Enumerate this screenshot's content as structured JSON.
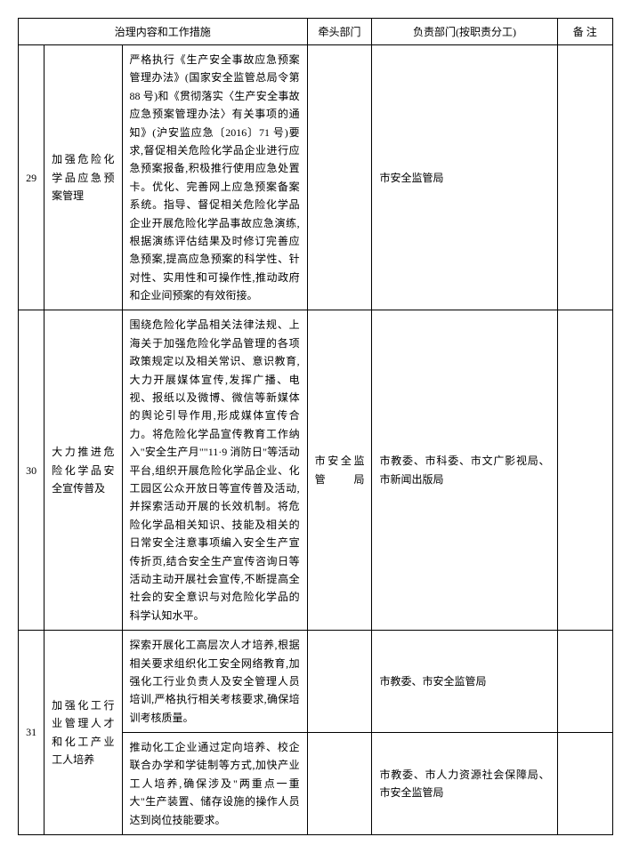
{
  "header": {
    "col_group_1": "治理内容和工作措施",
    "col_2": "牵头部门",
    "col_3": "负责部门(按职责分工)",
    "col_4": "备  注"
  },
  "rows": [
    {
      "num": "29",
      "title": "加强危险化学品应急预案管理",
      "measure": "严格执行《生产安全事故应急预案管理办法》(国家安全监管总局令第 88 号)和《贯彻落实〈生产安全事故应急预案管理办法〉有关事项的通知》(沪安监应急〔2016〕71 号)要求,督促相关危险化学品企业进行应急预案报备,积极推行使用应急处置卡。优化、完善网上应急预案备案系统。指导、督促相关危险化学品企业开展危险化学品事故应急演练,根据演练评估结果及时修订完善应急预案,提高应急预案的科学性、针对性、实用性和可操作性,推动政府和企业间预案的有效衔接。",
      "lead": "",
      "resp": "市安全监管局",
      "note": ""
    },
    {
      "num": "30",
      "title": "大力推进危险化学品安全宣传普及",
      "measure": "围绕危险化学品相关法律法规、上海关于加强危险化学品管理的各项政策规定以及相关常识、意识教育,大力开展媒体宣传,发挥广播、电视、报纸以及微博、微信等新媒体的舆论引导作用,形成媒体宣传合力。将危险化学品宣传教育工作纳入\"安全生产月\"\"11·9 消防日\"等活动平台,组织开展危险化学品企业、化工园区公众开放日等宣传普及活动,并探索活动开展的长效机制。将危险化学品相关知识、技能及相关的日常安全注意事项编入安全生产宣传折页,结合安全生产宣传咨询日等活动主动开展社会宣传,不断提高全社会的安全意识与对危险化学品的科学认知水平。",
      "lead": "市安全监管局",
      "resp": "市教委、市科委、市文广影视局、市新闻出版局",
      "note": ""
    },
    {
      "num": "31",
      "title": "加强化工行业管理人才和化工产业工人培养",
      "sub": [
        {
          "measure": "探索开展化工高层次人才培养,根据相关要求组织化工安全网络教育,加强化工行业负责人及安全管理人员培训,严格执行相关考核要求,确保培训考核质量。",
          "lead": "",
          "resp": "市教委、市安全监管局",
          "note": ""
        },
        {
          "measure": "推动化工企业通过定向培养、校企联合办学和学徒制等方式,加快产业工人培养,确保涉及\"两重点一重大\"生产装置、储存设施的操作人员达到岗位技能要求。",
          "lead": "",
          "resp": "市教委、市人力资源社会保障局、市安全监管局",
          "note": ""
        }
      ]
    }
  ]
}
